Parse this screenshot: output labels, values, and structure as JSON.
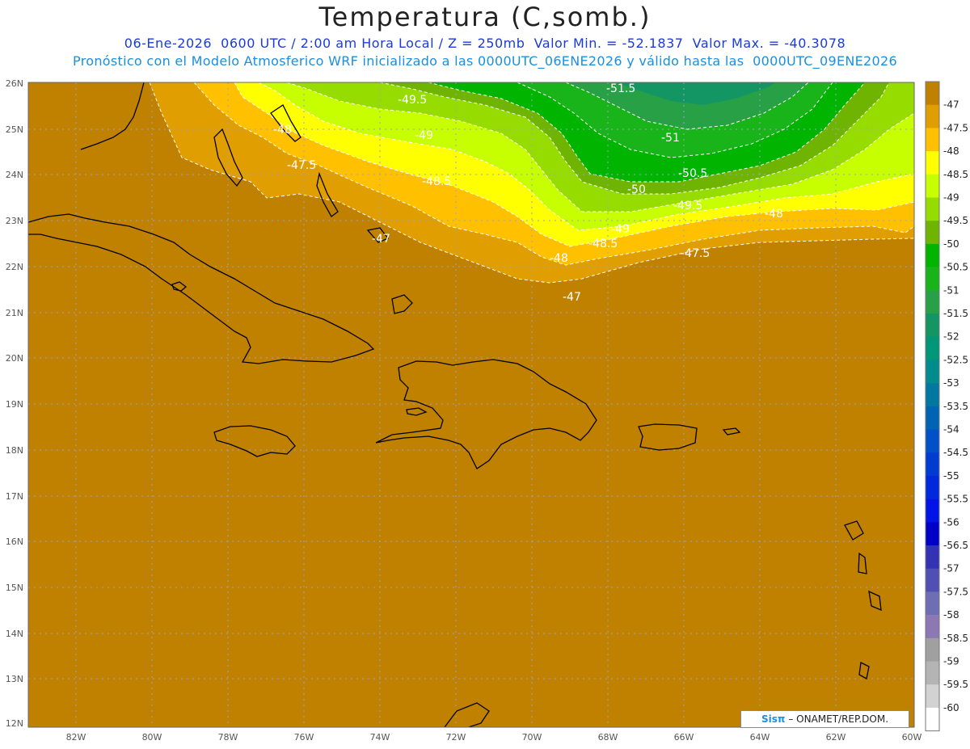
{
  "header": {
    "title": "Temperatura (C,somb.)",
    "line1": "06-Ene-2026  0600 UTC / 2:00 am Hora Local / Z = 250mb  Valor Min. = -52.1837  Valor Max. = -40.3078",
    "line2": "Pronóstico con el Modelo Atmosferico WRF inicializado a las 0000UTC_06ENE2026 y válido hasta las  0000UTC_09ENE2026"
  },
  "axes": {
    "lat_labels": [
      "26N",
      "25N",
      "24N",
      "23N",
      "22N",
      "21N",
      "20N",
      "19N",
      "18N",
      "17N",
      "16N",
      "15N",
      "14N",
      "13N",
      "12N"
    ],
    "lon_labels": [
      "82W",
      "80W",
      "78W",
      "76W",
      "74W",
      "72W",
      "70W",
      "68W",
      "66W",
      "64W",
      "62W",
      "60W"
    ]
  },
  "colorbar": {
    "labels": [
      "-47",
      "-47.5",
      "-48",
      "-48.5",
      "-49",
      "-49.5",
      "-50",
      "-50.5",
      "-51",
      "-51.5",
      "-52",
      "-52.5",
      "-53",
      "-53.5",
      "-54",
      "-54.5",
      "-55",
      "-55.5",
      "-56",
      "-56.5",
      "-57",
      "-57.5",
      "-58",
      "-58.5",
      "-59",
      "-59.5",
      "-60"
    ],
    "colors": [
      "#c08000",
      "#e09e00",
      "#ffc000",
      "#ffff00",
      "#c8ff00",
      "#96dc00",
      "#6eb400",
      "#00b400",
      "#19b419",
      "#28a046",
      "#149664",
      "#009678",
      "#008c8c",
      "#0078a0",
      "#0064b4",
      "#0050c8",
      "#003cd2",
      "#0028dc",
      "#0014e6",
      "#0000c8",
      "#3232b4",
      "#5050b4",
      "#6e6eb4",
      "#8c78b4",
      "#a0a0a0",
      "#b4b4b4",
      "#d2d2d2",
      "#ffffff"
    ]
  },
  "contours": {
    "labels": [
      "-51.5",
      "-49.5",
      "-48",
      "-49",
      "-51",
      "-47.5",
      "-50.5",
      "-48.5",
      "-50",
      "-49.5",
      "-48",
      "-47",
      "-49",
      "-48.5",
      "-47.5",
      "-48",
      "-47"
    ]
  },
  "credit": {
    "logo": "Sisπ",
    "text": "– ONAMET/REP.DOM."
  }
}
